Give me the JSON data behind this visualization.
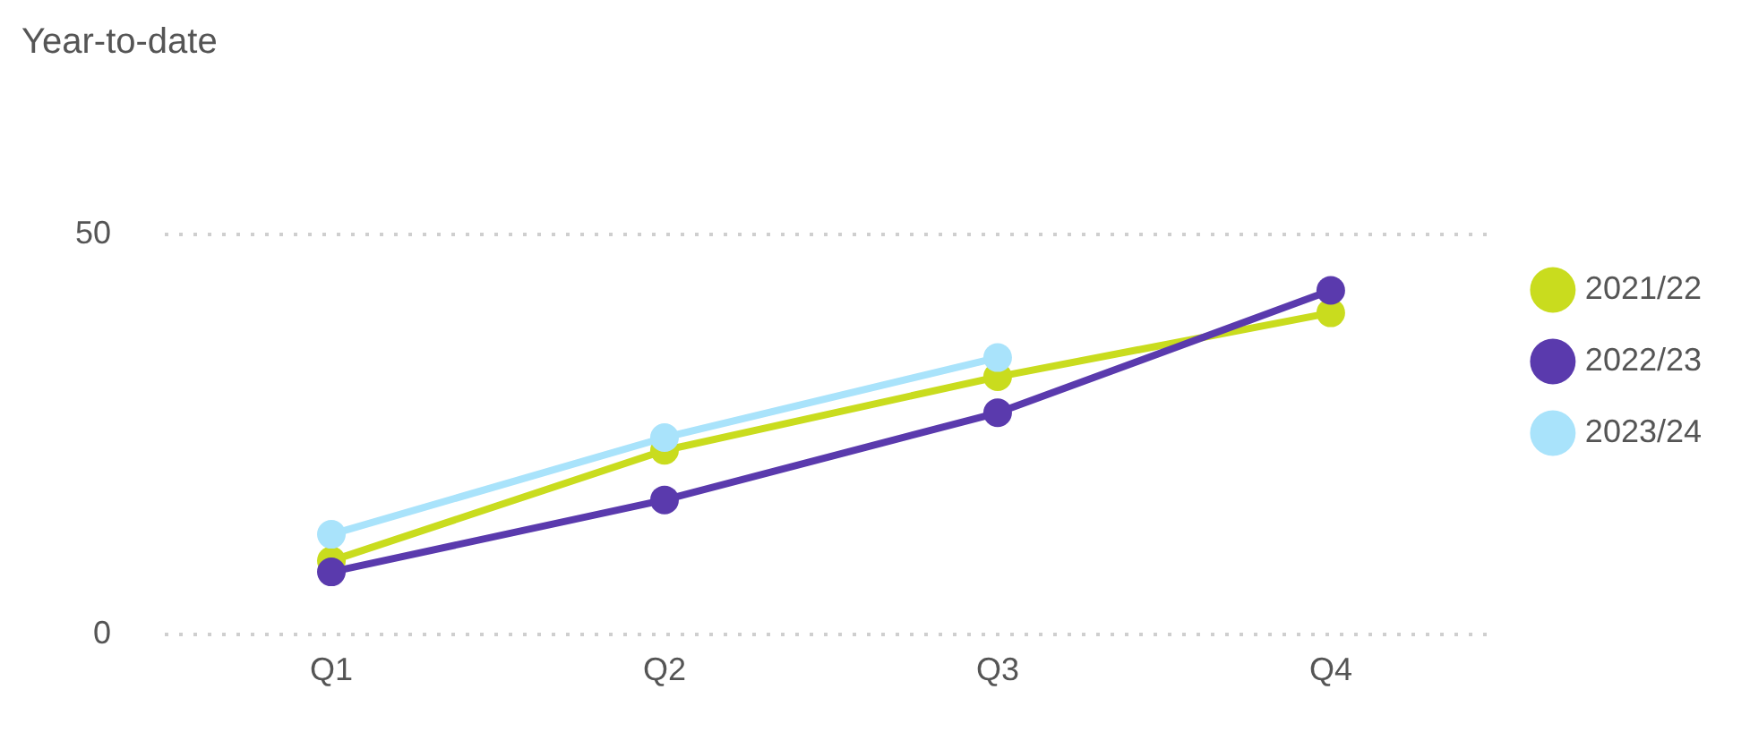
{
  "chart_data": {
    "type": "line",
    "title": "Year-to-date",
    "categories": [
      "Q1",
      "Q2",
      "Q3",
      "Q4"
    ],
    "series": [
      {
        "name": "2021/22",
        "color": "#c9dc1e",
        "values": [
          9.2,
          23,
          32.2,
          40.2
        ]
      },
      {
        "name": "2022/23",
        "color": "#5a3aad",
        "values": [
          7.8,
          16.8,
          27.7,
          43
        ]
      },
      {
        "name": "2023/24",
        "color": "#a9e3fb",
        "values": [
          12.5,
          24.6,
          34.6,
          null
        ]
      }
    ],
    "ylim": [
      0,
      50
    ],
    "yticks": [
      0,
      50
    ],
    "grid": "y",
    "legend": "right",
    "marker": "circle",
    "line_style": "solid"
  }
}
